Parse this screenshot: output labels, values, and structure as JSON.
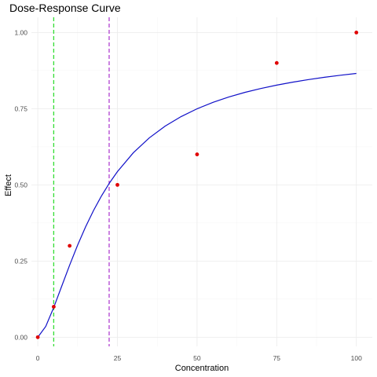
{
  "chart_data": {
    "type": "scatter",
    "title": "Dose-Response Curve",
    "xlabel": "Concentration",
    "ylabel": "Effect",
    "xlim": [
      -2,
      105
    ],
    "ylim": [
      -0.03,
      1.05
    ],
    "x_ticks": [
      0,
      25,
      50,
      75,
      100
    ],
    "x_tick_labels": [
      "0",
      "25",
      "50",
      "75",
      "100"
    ],
    "y_ticks": [
      0,
      0.25,
      0.5,
      0.75,
      1.0
    ],
    "y_tick_labels": [
      "0.00",
      "0.25",
      "0.50",
      "0.75",
      "1.00"
    ],
    "grid": true,
    "points": {
      "x": [
        0,
        5,
        10,
        25,
        50,
        75,
        100
      ],
      "y": [
        0.0,
        0.1,
        0.3,
        0.5,
        0.6,
        0.9,
        1.0
      ],
      "color": "#e00000"
    },
    "fit_curve": {
      "color": "#1010c8",
      "x": [
        0,
        2.5,
        5,
        7.5,
        10,
        12.5,
        15,
        17.5,
        20,
        22.5,
        25,
        30,
        35,
        40,
        45,
        50,
        55,
        60,
        65,
        70,
        75,
        80,
        85,
        90,
        95,
        100
      ],
      "y": [
        0.0,
        0.0355,
        0.0975,
        0.1672,
        0.2366,
        0.3022,
        0.3622,
        0.416,
        0.4639,
        0.5062,
        0.5435,
        0.6055,
        0.6542,
        0.693,
        0.7242,
        0.7497,
        0.7709,
        0.7886,
        0.8035,
        0.8163,
        0.8274,
        0.8371,
        0.8455,
        0.8531,
        0.8597,
        0.8657
      ]
    },
    "vlines": [
      {
        "x": 5,
        "color": "#33dd33",
        "style": "dashed"
      },
      {
        "x": 22.4,
        "color": "#b040d0",
        "style": "dashed"
      }
    ]
  }
}
